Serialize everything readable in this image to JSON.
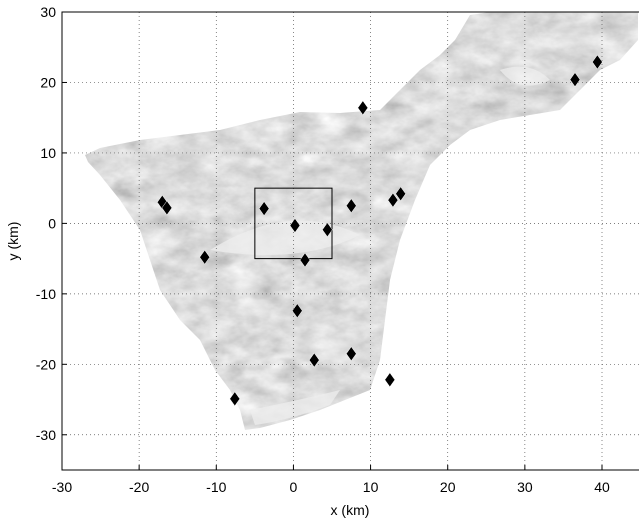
{
  "chart_data": {
    "type": "scatter",
    "xlabel": "x (km)",
    "ylabel": "y (km)",
    "xlim": [
      -30,
      45
    ],
    "ylim": [
      -35,
      30
    ],
    "xticks": [
      -30,
      -20,
      -10,
      0,
      10,
      20,
      30,
      40
    ],
    "yticks": [
      -30,
      -20,
      -10,
      0,
      10,
      20,
      30
    ],
    "grid": true,
    "box": {
      "x": [
        -5,
        5
      ],
      "y": [
        -5,
        5
      ]
    },
    "series": [
      {
        "color": "#000000",
        "marker": "diamond",
        "x": [
          36.5,
          39.4,
          9.0,
          -17.0,
          -16.4,
          -3.8,
          0.2,
          4.4,
          7.5,
          12.9,
          13.9,
          -11.5,
          1.5,
          0.5,
          7.5,
          2.7,
          12.5,
          -7.6
        ],
        "values": [
          20.4,
          22.9,
          16.4,
          3.0,
          2.2,
          2.1,
          -0.3,
          -0.9,
          2.5,
          3.3,
          4.2,
          -4.8,
          -5.2,
          -12.4,
          -18.5,
          -19.4,
          -22.2,
          -24.9
        ]
      }
    ]
  }
}
